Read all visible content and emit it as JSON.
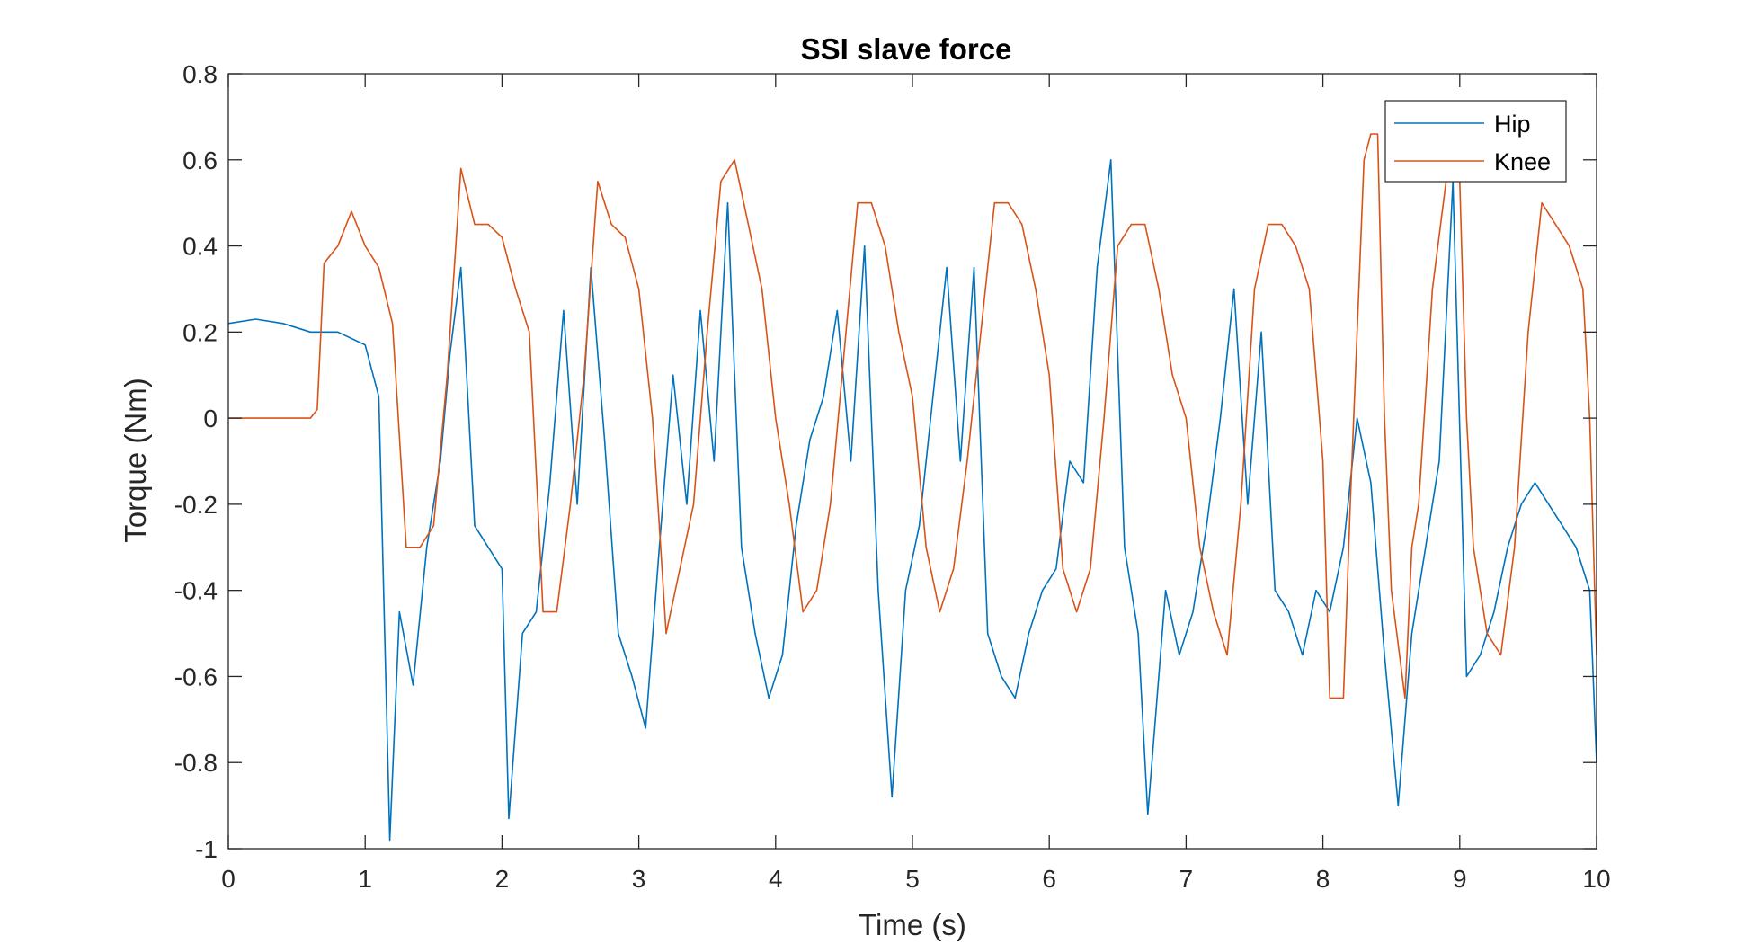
{
  "chart_data": {
    "type": "line",
    "title": "SSI slave force",
    "xlabel": "Time (s)",
    "ylabel": "Torque (Nm)",
    "xlim": [
      0,
      10
    ],
    "ylim": [
      -1,
      0.8
    ],
    "xticks": [
      0,
      1,
      2,
      3,
      4,
      5,
      6,
      7,
      8,
      9,
      10
    ],
    "xtick_labels": [
      "0",
      "1",
      "2",
      "3",
      "4",
      "5",
      "6",
      "7",
      "8",
      "9",
      "10"
    ],
    "yticks": [
      0.8,
      0.6,
      0.4,
      0.2,
      0,
      -0.2,
      -0.4,
      -0.6,
      -0.8,
      -1
    ],
    "ytick_labels": [
      "0.8",
      "0.6",
      "0.4",
      "0.2",
      "0",
      "-0.2",
      "-0.4",
      "-0.6",
      "-0.8",
      "-1"
    ],
    "grid": false,
    "legend_position": "top-right",
    "series": [
      {
        "name": "Hip",
        "color": "#0072BD",
        "points": [
          [
            0,
            0.22
          ],
          [
            0.2,
            0.23
          ],
          [
            0.4,
            0.22
          ],
          [
            0.6,
            0.2
          ],
          [
            0.8,
            0.2
          ],
          [
            1.0,
            0.17
          ],
          [
            1.1,
            0.05
          ],
          [
            1.18,
            -0.98
          ],
          [
            1.25,
            -0.45
          ],
          [
            1.35,
            -0.62
          ],
          [
            1.45,
            -0.3
          ],
          [
            1.55,
            -0.1
          ],
          [
            1.62,
            0.15
          ],
          [
            1.7,
            0.35
          ],
          [
            1.8,
            -0.25
          ],
          [
            1.9,
            -0.3
          ],
          [
            2.0,
            -0.35
          ],
          [
            2.05,
            -0.93
          ],
          [
            2.15,
            -0.5
          ],
          [
            2.25,
            -0.45
          ],
          [
            2.35,
            -0.15
          ],
          [
            2.45,
            0.25
          ],
          [
            2.55,
            -0.2
          ],
          [
            2.65,
            0.35
          ],
          [
            2.75,
            -0.05
          ],
          [
            2.85,
            -0.5
          ],
          [
            2.95,
            -0.6
          ],
          [
            3.05,
            -0.72
          ],
          [
            3.15,
            -0.3
          ],
          [
            3.25,
            0.1
          ],
          [
            3.35,
            -0.2
          ],
          [
            3.45,
            0.25
          ],
          [
            3.55,
            -0.1
          ],
          [
            3.65,
            0.5
          ],
          [
            3.75,
            -0.3
          ],
          [
            3.85,
            -0.5
          ],
          [
            3.95,
            -0.65
          ],
          [
            4.05,
            -0.55
          ],
          [
            4.15,
            -0.25
          ],
          [
            4.25,
            -0.05
          ],
          [
            4.35,
            0.05
          ],
          [
            4.45,
            0.25
          ],
          [
            4.55,
            -0.1
          ],
          [
            4.65,
            0.4
          ],
          [
            4.75,
            -0.4
          ],
          [
            4.85,
            -0.88
          ],
          [
            4.95,
            -0.4
          ],
          [
            5.05,
            -0.25
          ],
          [
            5.15,
            0.05
          ],
          [
            5.25,
            0.35
          ],
          [
            5.35,
            -0.1
          ],
          [
            5.45,
            0.35
          ],
          [
            5.55,
            -0.5
          ],
          [
            5.65,
            -0.6
          ],
          [
            5.75,
            -0.65
          ],
          [
            5.85,
            -0.5
          ],
          [
            5.95,
            -0.4
          ],
          [
            6.05,
            -0.35
          ],
          [
            6.15,
            -0.1
          ],
          [
            6.25,
            -0.15
          ],
          [
            6.35,
            0.35
          ],
          [
            6.45,
            0.6
          ],
          [
            6.55,
            -0.3
          ],
          [
            6.65,
            -0.5
          ],
          [
            6.72,
            -0.92
          ],
          [
            6.85,
            -0.4
          ],
          [
            6.95,
            -0.55
          ],
          [
            7.05,
            -0.45
          ],
          [
            7.15,
            -0.25
          ],
          [
            7.25,
            0.0
          ],
          [
            7.35,
            0.3
          ],
          [
            7.45,
            -0.2
          ],
          [
            7.55,
            0.2
          ],
          [
            7.65,
            -0.4
          ],
          [
            7.75,
            -0.45
          ],
          [
            7.85,
            -0.55
          ],
          [
            7.95,
            -0.4
          ],
          [
            8.05,
            -0.45
          ],
          [
            8.15,
            -0.3
          ],
          [
            8.25,
            0.0
          ],
          [
            8.35,
            -0.15
          ],
          [
            8.45,
            -0.55
          ],
          [
            8.55,
            -0.9
          ],
          [
            8.65,
            -0.5
          ],
          [
            8.75,
            -0.3
          ],
          [
            8.85,
            -0.1
          ],
          [
            8.95,
            0.55
          ],
          [
            9.05,
            -0.6
          ],
          [
            9.15,
            -0.55
          ],
          [
            9.25,
            -0.45
          ],
          [
            9.35,
            -0.3
          ],
          [
            9.45,
            -0.2
          ],
          [
            9.55,
            -0.15
          ],
          [
            9.65,
            -0.2
          ],
          [
            9.75,
            -0.25
          ],
          [
            9.85,
            -0.3
          ],
          [
            9.95,
            -0.4
          ],
          [
            10.0,
            -0.8
          ]
        ]
      },
      {
        "name": "Knee",
        "color": "#D95319",
        "points": [
          [
            0,
            0.0
          ],
          [
            0.3,
            0.0
          ],
          [
            0.6,
            0.0
          ],
          [
            0.65,
            0.02
          ],
          [
            0.7,
            0.36
          ],
          [
            0.8,
            0.4
          ],
          [
            0.9,
            0.48
          ],
          [
            1.0,
            0.4
          ],
          [
            1.1,
            0.35
          ],
          [
            1.2,
            0.22
          ],
          [
            1.3,
            -0.3
          ],
          [
            1.4,
            -0.3
          ],
          [
            1.5,
            -0.25
          ],
          [
            1.6,
            0.1
          ],
          [
            1.7,
            0.58
          ],
          [
            1.8,
            0.45
          ],
          [
            1.9,
            0.45
          ],
          [
            2.0,
            0.42
          ],
          [
            2.1,
            0.3
          ],
          [
            2.2,
            0.2
          ],
          [
            2.3,
            -0.45
          ],
          [
            2.4,
            -0.45
          ],
          [
            2.5,
            -0.2
          ],
          [
            2.6,
            0.1
          ],
          [
            2.7,
            0.55
          ],
          [
            2.8,
            0.45
          ],
          [
            2.9,
            0.42
          ],
          [
            3.0,
            0.3
          ],
          [
            3.1,
            0.0
          ],
          [
            3.2,
            -0.5
          ],
          [
            3.3,
            -0.35
          ],
          [
            3.4,
            -0.2
          ],
          [
            3.5,
            0.2
          ],
          [
            3.6,
            0.55
          ],
          [
            3.7,
            0.6
          ],
          [
            3.8,
            0.45
          ],
          [
            3.9,
            0.3
          ],
          [
            4.0,
            0.0
          ],
          [
            4.1,
            -0.2
          ],
          [
            4.2,
            -0.45
          ],
          [
            4.3,
            -0.4
          ],
          [
            4.4,
            -0.2
          ],
          [
            4.5,
            0.15
          ],
          [
            4.6,
            0.5
          ],
          [
            4.7,
            0.5
          ],
          [
            4.8,
            0.4
          ],
          [
            4.9,
            0.2
          ],
          [
            5.0,
            0.05
          ],
          [
            5.1,
            -0.3
          ],
          [
            5.2,
            -0.45
          ],
          [
            5.3,
            -0.35
          ],
          [
            5.4,
            -0.1
          ],
          [
            5.5,
            0.2
          ],
          [
            5.6,
            0.5
          ],
          [
            5.7,
            0.5
          ],
          [
            5.8,
            0.45
          ],
          [
            5.9,
            0.3
          ],
          [
            6.0,
            0.1
          ],
          [
            6.1,
            -0.35
          ],
          [
            6.2,
            -0.45
          ],
          [
            6.3,
            -0.35
          ],
          [
            6.4,
            0.0
          ],
          [
            6.5,
            0.4
          ],
          [
            6.6,
            0.45
          ],
          [
            6.7,
            0.45
          ],
          [
            6.8,
            0.3
          ],
          [
            6.9,
            0.1
          ],
          [
            7.0,
            0.0
          ],
          [
            7.1,
            -0.3
          ],
          [
            7.2,
            -0.45
          ],
          [
            7.3,
            -0.55
          ],
          [
            7.4,
            -0.2
          ],
          [
            7.5,
            0.3
          ],
          [
            7.6,
            0.45
          ],
          [
            7.7,
            0.45
          ],
          [
            7.8,
            0.4
          ],
          [
            7.9,
            0.3
          ],
          [
            8.0,
            -0.1
          ],
          [
            8.05,
            -0.65
          ],
          [
            8.1,
            -0.65
          ],
          [
            8.15,
            -0.65
          ],
          [
            8.2,
            -0.2
          ],
          [
            8.3,
            0.6
          ],
          [
            8.35,
            0.66
          ],
          [
            8.4,
            0.66
          ],
          [
            8.45,
            0.0
          ],
          [
            8.5,
            -0.4
          ],
          [
            8.6,
            -0.65
          ],
          [
            8.65,
            -0.3
          ],
          [
            8.7,
            -0.2
          ],
          [
            8.8,
            0.3
          ],
          [
            8.9,
            0.55
          ],
          [
            9.0,
            0.55
          ],
          [
            9.05,
            0.0
          ],
          [
            9.1,
            -0.3
          ],
          [
            9.2,
            -0.5
          ],
          [
            9.3,
            -0.55
          ],
          [
            9.4,
            -0.3
          ],
          [
            9.5,
            0.2
          ],
          [
            9.6,
            0.5
          ],
          [
            9.7,
            0.45
          ],
          [
            9.8,
            0.4
          ],
          [
            9.9,
            0.3
          ],
          [
            9.95,
            0.0
          ],
          [
            10.0,
            -0.55
          ]
        ]
      }
    ]
  }
}
